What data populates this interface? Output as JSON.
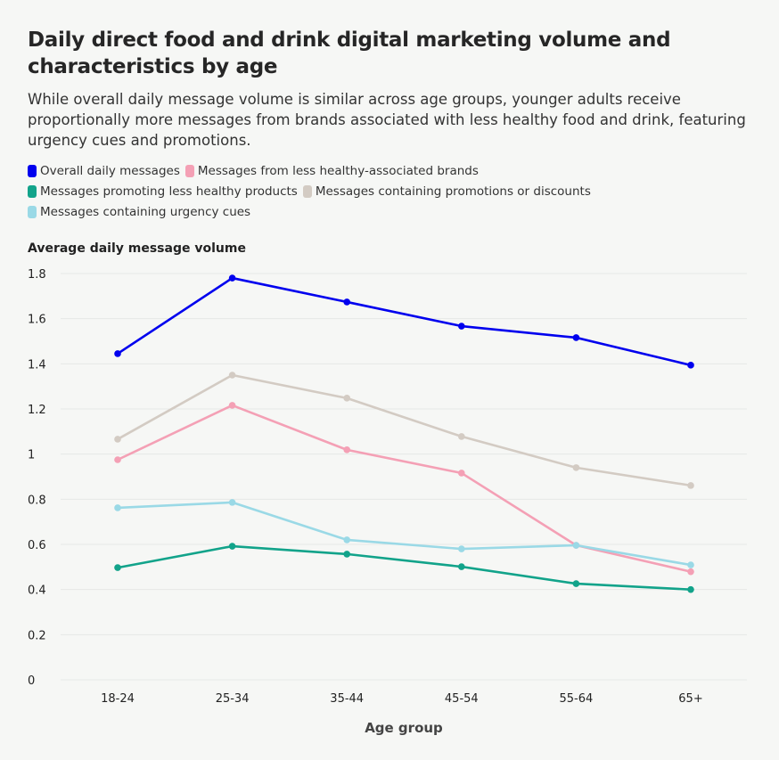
{
  "title": "Daily direct food and drink digital marketing volume and characteristics by age",
  "subtitle": "While overall daily message volume is similar across age groups, younger adults receive proportionally more messages from brands associated with less healthy food and drink, featuring urgency cues and promotions.",
  "chart_data": {
    "type": "line",
    "ylabel": "Average daily message volume",
    "xlabel": "Age group",
    "categories": [
      "18-24",
      "25-34",
      "35-44",
      "45-54",
      "55-64",
      "65+"
    ],
    "ylim": [
      0,
      1.8
    ],
    "yticks": [
      "0",
      "0.2",
      "0.4",
      "0.6",
      "0.8",
      "1",
      "1.2",
      "1.4",
      "1.6",
      "1.8"
    ],
    "grid": true,
    "legend_placement": "top-left",
    "series": [
      {
        "name": "Overall daily messages",
        "color": "#0000ee",
        "values": [
          1.445,
          1.78,
          1.674,
          1.567,
          1.516,
          1.394
        ]
      },
      {
        "name": "Messages from less healthy-associated brands",
        "color": "#f4a0b5",
        "values": [
          0.975,
          1.216,
          1.019,
          0.916,
          0.596,
          0.479
        ]
      },
      {
        "name": "Messages promoting less healthy products",
        "color": "#12a38a",
        "values": [
          0.497,
          0.592,
          0.557,
          0.501,
          0.426,
          0.4
        ]
      },
      {
        "name": "Messages containing promotions or discounts",
        "color": "#d3cbc3",
        "values": [
          1.066,
          1.35,
          1.248,
          1.078,
          0.94,
          0.861
        ]
      },
      {
        "name": "Messages containing urgency cues",
        "color": "#9ad9e6",
        "values": [
          0.762,
          0.786,
          0.62,
          0.58,
          0.596,
          0.509
        ]
      }
    ]
  }
}
